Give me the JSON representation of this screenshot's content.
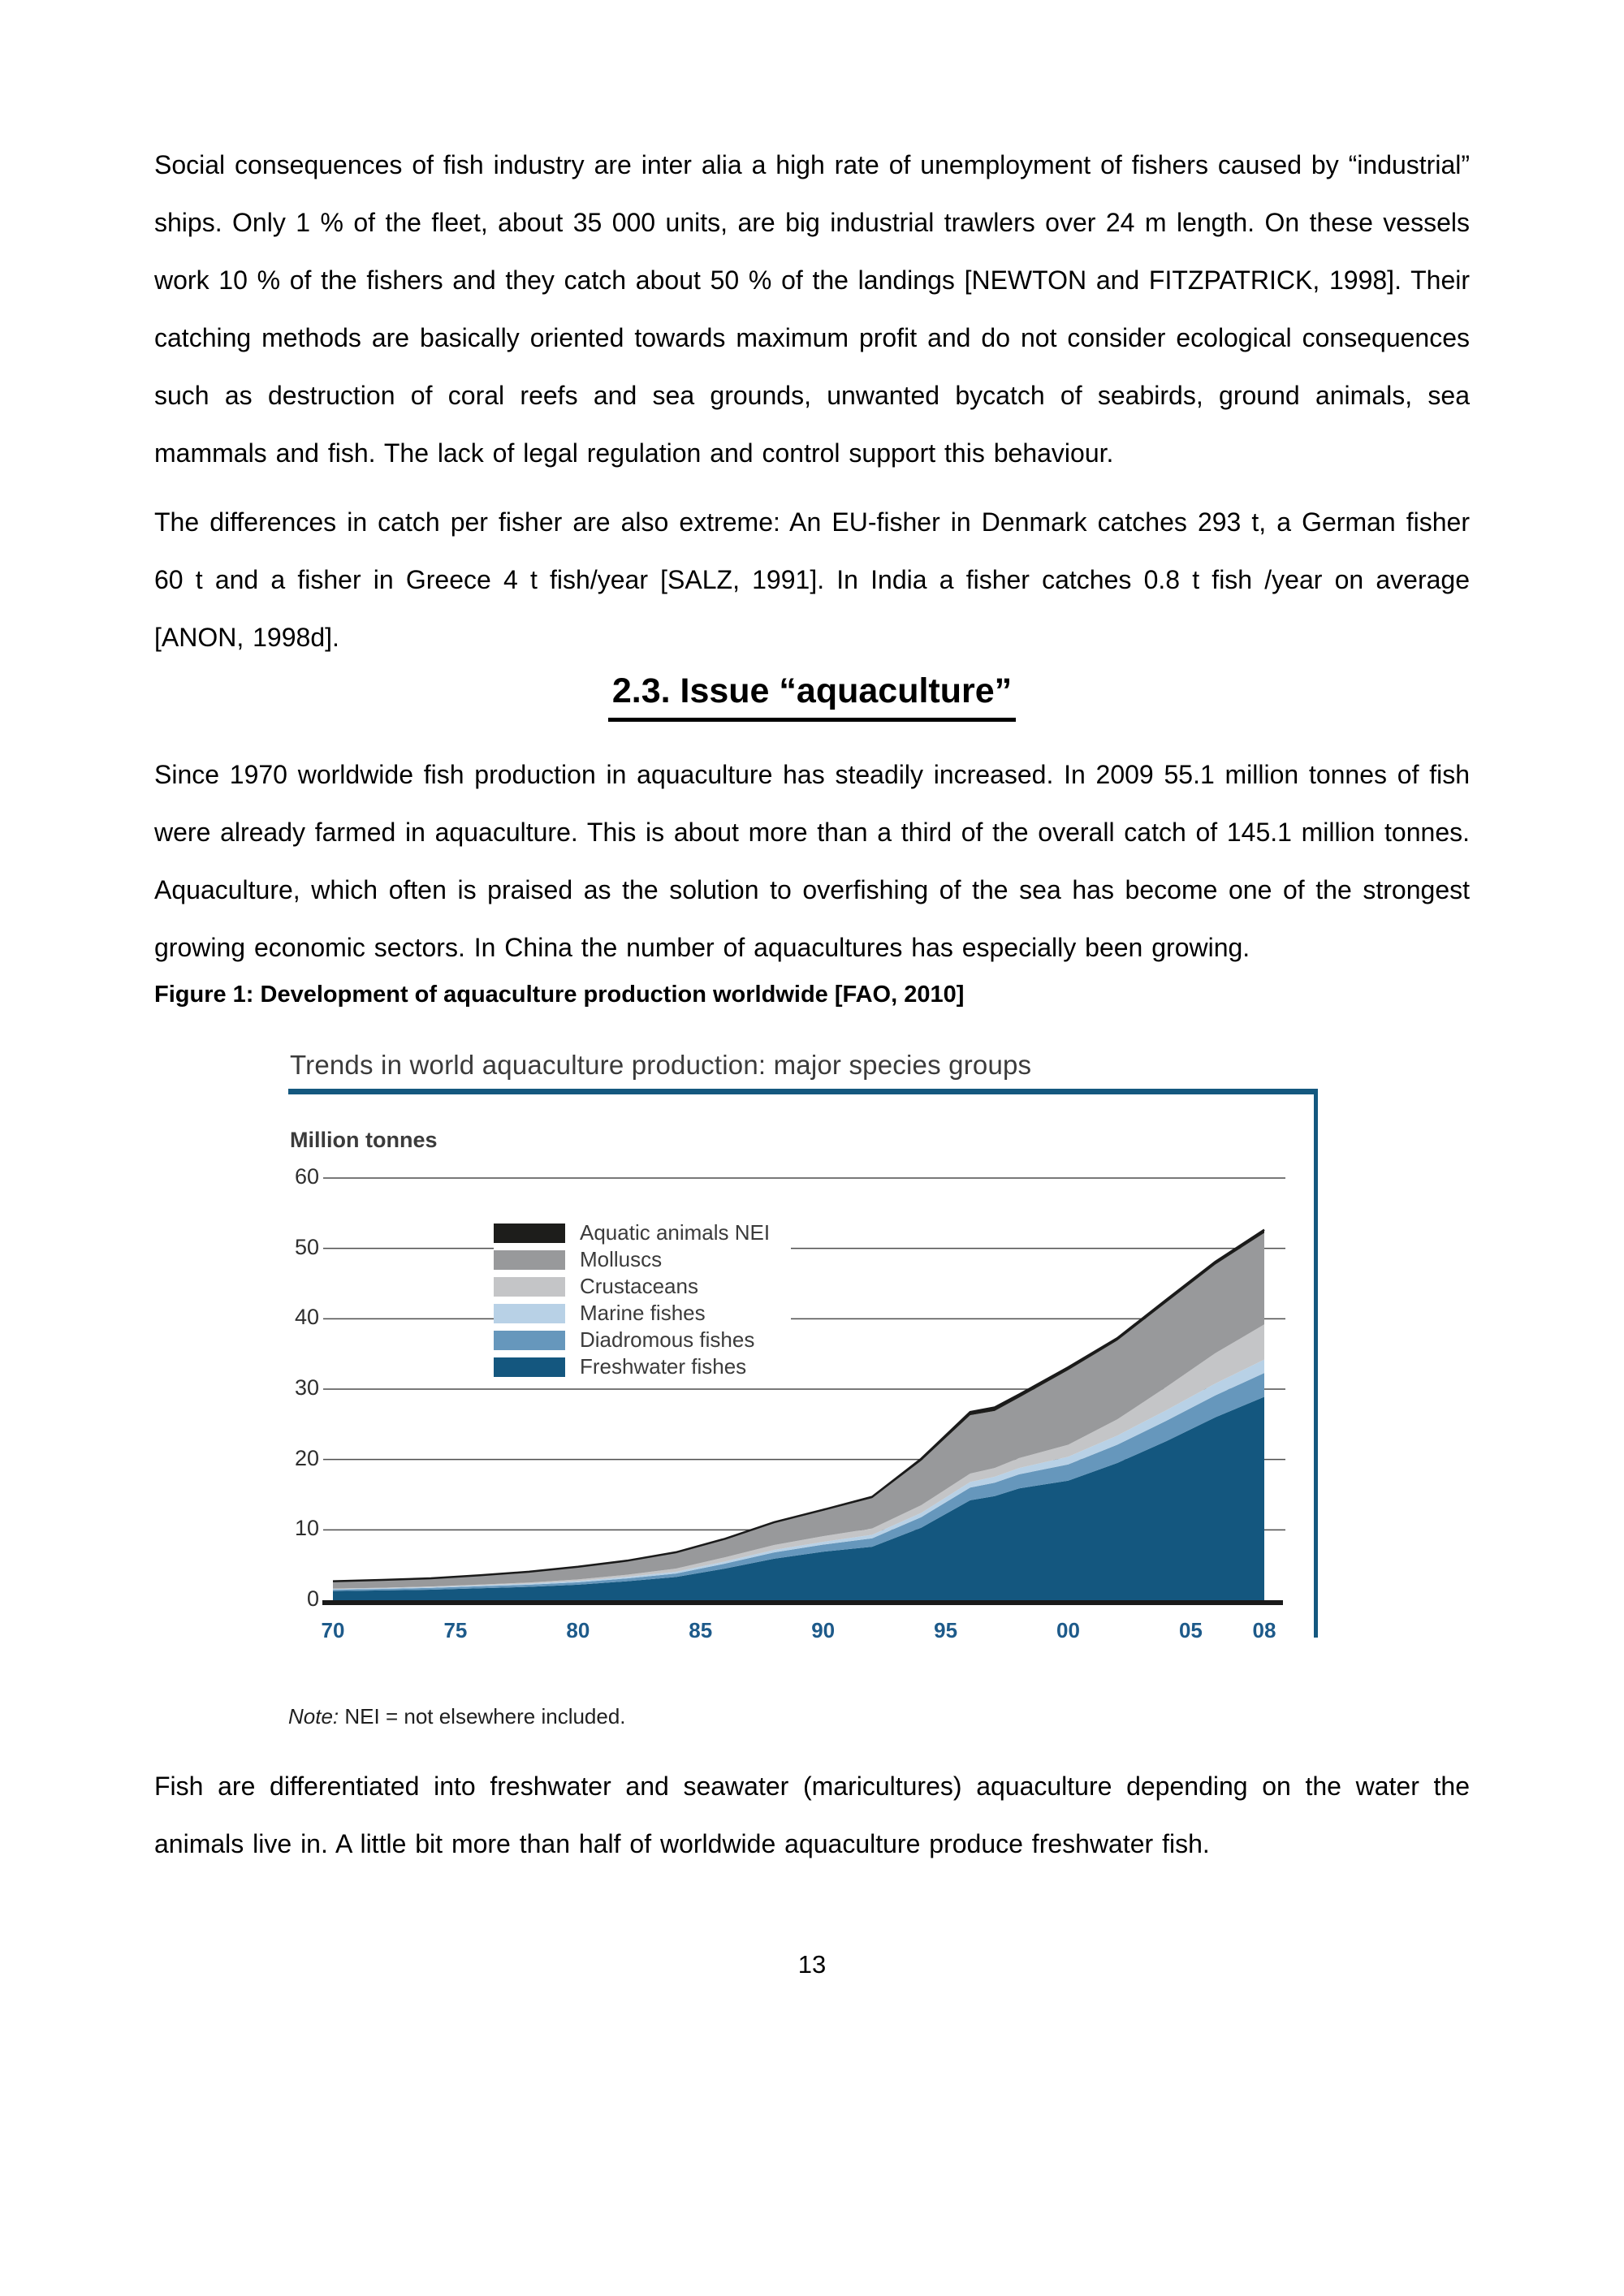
{
  "doc": {
    "paragraph1": "Social consequences of fish industry are inter alia a high rate of unemployment of fishers caused by “industrial” ships. Only 1 % of the fleet, about 35 000 units, are big industrial trawlers over 24 m length. On these vessels work 10 % of the fishers and they catch about 50 % of the landings [NEWTON and FITZPATRICK, 1998]. Their catching methods are basically oriented towards maximum profit and do not consider ecological consequences such as destruction of coral reefs and sea grounds, unwanted bycatch of seabirds, ground animals, sea mammals and fish. The lack of legal regulation and control support this behaviour.",
    "paragraph2": "The differences in catch per fisher are also extreme: An EU-fisher in Denmark catches 293 t, a German fisher 60 t and a fisher in Greece 4 t fish/year [SALZ, 1991]. In India a fisher catches 0.8 t fish /year on average [ANON, 1998d].",
    "heading": "2.3. Issue “aquaculture”",
    "paragraph3": "Since 1970 worldwide fish production in aquaculture has steadily increased. In 2009 55.1 million tonnes of fish were already farmed in aquaculture. This is about more than a third of the overall catch of 145.1 million tonnes. Aquaculture, which often is praised as the solution to overfishing of the sea has become one of the strongest growing economic sectors. In China the number of aquacultures has especially been growing.",
    "figure_caption": "Figure 1: Development of aquaculture production worldwide [FAO, 2010]",
    "note_label": "Note:",
    "note_text": " NEI = not elsewhere included.",
    "paragraph4": "Fish are differentiated into freshwater and seawater (maricultures) aquaculture depending on the water the animals live in. A little bit more than half of worldwide aquaculture produce freshwater fish.",
    "page_number": "13"
  },
  "chart_data": {
    "type": "area",
    "stacked": true,
    "title": "Trends in world aquaculture production: major species groups",
    "ylabel": "Million tonnes",
    "ylim": [
      0,
      60
    ],
    "yticks": [
      60,
      50,
      40,
      30,
      20,
      10,
      0
    ],
    "xtick_labels": [
      "70",
      "75",
      "80",
      "85",
      "90",
      "95",
      "00",
      "05",
      "08"
    ],
    "xtick_years": [
      1970,
      1975,
      1980,
      1985,
      1990,
      1995,
      2000,
      2005,
      2008
    ],
    "x": [
      1970,
      1972,
      1974,
      1976,
      1978,
      1980,
      1982,
      1984,
      1986,
      1988,
      1990,
      1992,
      1994,
      1996,
      1997,
      1998,
      2000,
      2002,
      2004,
      2006,
      2008
    ],
    "series": [
      {
        "name": "Freshwater fishes",
        "color": "#14577f",
        "values": [
          1.3,
          1.4,
          1.5,
          1.7,
          1.9,
          2.2,
          2.7,
          3.3,
          4.5,
          5.9,
          6.9,
          7.6,
          10.3,
          14.2,
          14.8,
          15.9,
          17.0,
          19.5,
          22.6,
          26.0,
          28.9
        ]
      },
      {
        "name": "Diadromous fishes",
        "color": "#6697bc",
        "values": [
          0.2,
          0.22,
          0.25,
          0.28,
          0.3,
          0.35,
          0.4,
          0.5,
          0.7,
          0.9,
          1.0,
          1.2,
          1.5,
          1.8,
          1.9,
          2.0,
          2.3,
          2.6,
          2.9,
          3.1,
          3.4
        ]
      },
      {
        "name": "Marine fishes",
        "color": "#b8d1e6",
        "values": [
          0.1,
          0.1,
          0.12,
          0.14,
          0.17,
          0.2,
          0.22,
          0.25,
          0.3,
          0.35,
          0.4,
          0.5,
          0.6,
          0.8,
          0.85,
          0.9,
          1.1,
          1.3,
          1.5,
          1.7,
          1.9
        ]
      },
      {
        "name": "Crustaceans",
        "color": "#c4c5c7",
        "values": [
          0.05,
          0.06,
          0.08,
          0.1,
          0.15,
          0.2,
          0.3,
          0.45,
          0.6,
          0.7,
          0.8,
          0.9,
          1.1,
          1.2,
          1.25,
          1.4,
          1.7,
          2.3,
          3.3,
          4.3,
          5.0
        ]
      },
      {
        "name": "Molluscs",
        "color": "#98999b",
        "values": [
          1.0,
          1.05,
          1.1,
          1.25,
          1.45,
          1.7,
          1.9,
          2.2,
          2.5,
          3.1,
          3.6,
          4.3,
          6.3,
          8.3,
          8.1,
          8.6,
          10.6,
          11.2,
          12.0,
          12.6,
          13.0
        ]
      },
      {
        "name": "Aquatic animals NEI",
        "color": "#1d1d1b",
        "values": [
          0.05,
          0.05,
          0.06,
          0.07,
          0.08,
          0.1,
          0.1,
          0.12,
          0.13,
          0.14,
          0.15,
          0.2,
          0.3,
          0.45,
          0.5,
          0.45,
          0.4,
          0.35,
          0.4,
          0.4,
          0.45
        ]
      }
    ],
    "legend": [
      {
        "label": "Aquatic animals NEI",
        "color": "#1d1d1b"
      },
      {
        "label": "Molluscs",
        "color": "#98999b"
      },
      {
        "label": "Crustaceans",
        "color": "#c4c5c7"
      },
      {
        "label": "Marine fishes",
        "color": "#b8d1e6"
      },
      {
        "label": "Diadromous fishes",
        "color": "#6697bc"
      },
      {
        "label": "Freshwater fishes",
        "color": "#14577f"
      }
    ],
    "colors": {
      "frame": "#14587f",
      "xtick_label": "#1d5a8a",
      "chart_text": "#3b3b3b",
      "grid": "#4d4d4d",
      "outline": "#1a1a1a"
    },
    "grid": true,
    "legend_position": "upper-left-inside"
  }
}
